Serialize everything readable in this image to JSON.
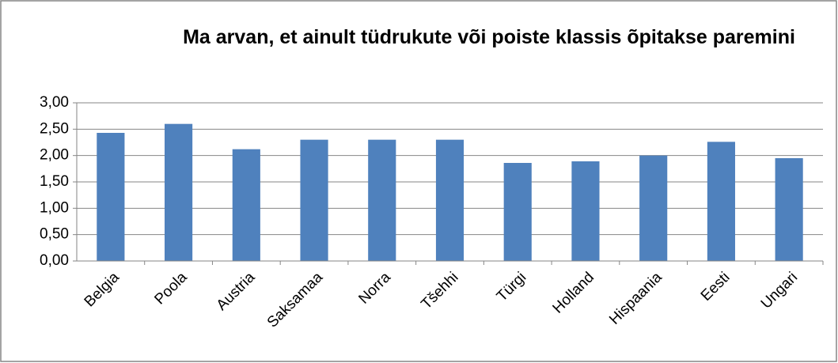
{
  "chart_data": {
    "type": "bar",
    "title": "Ma arvan, et ainult tüdrukute või poiste klassis õpitakse paremini",
    "categories": [
      "Belgia",
      "Poola",
      "Austria",
      "Saksamaa",
      "Norra",
      "Tšehhi",
      "Türgi",
      "Holland",
      "Hispaania",
      "Eesti",
      "Ungari"
    ],
    "values": [
      2.43,
      2.6,
      2.12,
      2.3,
      2.3,
      2.3,
      1.86,
      1.89,
      2.0,
      2.26,
      1.95
    ],
    "color": "#4f81bd",
    "ylim": [
      0,
      3
    ],
    "yticks": [
      {
        "value": 0,
        "label": "0,00"
      },
      {
        "value": 0.5,
        "label": "0,50"
      },
      {
        "value": 1,
        "label": "1,00"
      },
      {
        "value": 1.5,
        "label": "1,50"
      },
      {
        "value": 2,
        "label": "2,00"
      },
      {
        "value": 2.5,
        "label": "2,50"
      },
      {
        "value": 3,
        "label": "3,00"
      }
    ],
    "grid": true
  }
}
